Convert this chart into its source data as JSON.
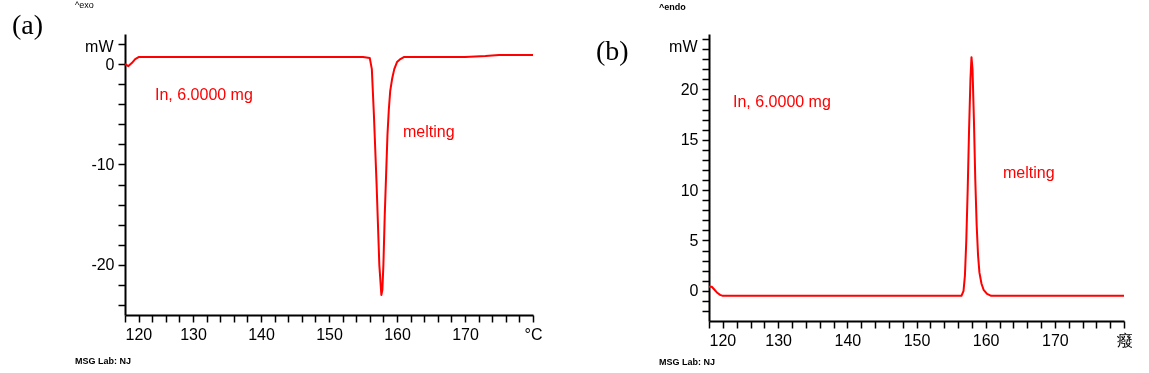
{
  "chart_data": [
    {
      "type": "line",
      "title": "(a)",
      "xlabel": "°C",
      "ylabel": "mW",
      "grid": false,
      "annotations": [
        "^exo",
        "In, 6.0000 mg",
        "melting",
        "MSG Lab: NJ"
      ],
      "x": [
        120,
        120.5,
        121,
        121.5,
        122,
        130,
        140,
        150,
        155,
        156,
        156.3,
        156.6,
        157,
        157.2,
        157.4,
        157.6,
        157.7,
        157.85,
        158,
        158.2,
        158.4,
        158.6,
        158.8,
        159,
        159.3,
        159.6,
        160,
        160.5,
        161,
        165,
        170,
        173,
        175,
        180
      ],
      "series": [
        {
          "color": "#ff0000",
          "values": [
            0,
            -0.2,
            0.1,
            0.5,
            0.7,
            0.7,
            0.7,
            0.7,
            0.7,
            0.6,
            -0.5,
            -5,
            -12,
            -16,
            -20,
            -22,
            -23,
            -22.5,
            -20,
            -15,
            -11,
            -7,
            -4.5,
            -2.7,
            -1.4,
            -0.5,
            0.2,
            0.5,
            0.7,
            0.7,
            0.7,
            0.8,
            0.9,
            0.9
          ]
        }
      ],
      "xlim": [
        120,
        180
      ],
      "xticks": [
        120,
        {
          "value": 122,
          "label": null
        },
        {
          "value": 124,
          "label": null
        },
        {
          "value": 126,
          "label": null
        },
        {
          "value": 128,
          "label": null
        },
        130,
        {
          "value": 132,
          "label": null
        },
        {
          "value": 134,
          "label": null
        },
        {
          "value": 136,
          "label": null
        },
        {
          "value": 138,
          "label": null
        },
        140,
        {
          "value": 142,
          "label": null
        },
        {
          "value": 144,
          "label": null
        },
        {
          "value": 146,
          "label": null
        },
        {
          "value": 148,
          "label": null
        },
        150,
        {
          "value": 152,
          "label": null
        },
        {
          "value": 154,
          "label": null
        },
        {
          "value": 156,
          "label": null
        },
        {
          "value": 158,
          "label": null
        },
        160,
        {
          "value": 162,
          "label": null
        },
        {
          "value": 164,
          "label": null
        },
        {
          "value": 166,
          "label": null
        },
        {
          "value": 168,
          "label": null
        },
        170,
        {
          "value": 172,
          "label": null
        },
        {
          "value": 174,
          "label": null
        },
        {
          "value": 176,
          "label": null
        },
        {
          "value": 178,
          "label": null
        },
        {
          "value": 180,
          "label": null
        }
      ],
      "ylim": [
        -25,
        3
      ],
      "yticks": [
        {
          "value": -24,
          "label": null
        },
        {
          "value": -22,
          "label": null
        },
        -20,
        {
          "value": -18,
          "label": null
        },
        {
          "value": -16,
          "label": null
        },
        {
          "value": -14,
          "label": null
        },
        {
          "value": -12,
          "label": null
        },
        -10,
        {
          "value": -8,
          "label": null
        },
        {
          "value": -6,
          "label": null
        },
        {
          "value": -4,
          "label": null
        },
        {
          "value": -2,
          "label": null
        },
        0,
        {
          "value": 2,
          "label": null
        }
      ]
    },
    {
      "type": "line",
      "title": "(b)",
      "xlabel": "癈",
      "ylabel": "mW",
      "grid": false,
      "annotations": [
        "^endo",
        "In, 6.0000 mg",
        "melting",
        "MSG Lab: NJ"
      ],
      "x": [
        120,
        120.4,
        120.8,
        121.2,
        121.6,
        122,
        130,
        140,
        150,
        155,
        156.5,
        156.8,
        157,
        157.2,
        157.4,
        157.6,
        157.8,
        157.95,
        158.1,
        158.3,
        158.5,
        158.7,
        158.9,
        159.1,
        159.4,
        159.7,
        160.2,
        160.8,
        161.2,
        165,
        170,
        175,
        180
      ],
      "series": [
        {
          "color": "#ff0000",
          "values": [
            0.4,
            0.4,
            0.1,
            -0.2,
            -0.4,
            -0.5,
            -0.5,
            -0.5,
            -0.5,
            -0.5,
            -0.5,
            0,
            1.5,
            5,
            10,
            16,
            21,
            23.2,
            22,
            17,
            11,
            6.5,
            3.5,
            1.8,
            0.7,
            0.1,
            -0.3,
            -0.5,
            -0.5,
            -0.5,
            -0.5,
            -0.5,
            -0.5
          ]
        }
      ],
      "xlim": [
        120,
        180
      ],
      "xticks": [
        120,
        {
          "value": 122,
          "label": null
        },
        {
          "value": 124,
          "label": null
        },
        {
          "value": 126,
          "label": null
        },
        {
          "value": 128,
          "label": null
        },
        130,
        {
          "value": 132,
          "label": null
        },
        {
          "value": 134,
          "label": null
        },
        {
          "value": 136,
          "label": null
        },
        {
          "value": 138,
          "label": null
        },
        140,
        {
          "value": 142,
          "label": null
        },
        {
          "value": 144,
          "label": null
        },
        {
          "value": 146,
          "label": null
        },
        {
          "value": 148,
          "label": null
        },
        150,
        {
          "value": 152,
          "label": null
        },
        {
          "value": 154,
          "label": null
        },
        {
          "value": 156,
          "label": null
        },
        {
          "value": 158,
          "label": null
        },
        160,
        {
          "value": 162,
          "label": null
        },
        {
          "value": 164,
          "label": null
        },
        {
          "value": 166,
          "label": null
        },
        {
          "value": 168,
          "label": null
        },
        170,
        {
          "value": 172,
          "label": null
        },
        {
          "value": 174,
          "label": null
        },
        {
          "value": 176,
          "label": null
        },
        {
          "value": 178,
          "label": null
        },
        {
          "value": 180,
          "label": null
        }
      ],
      "ylim": [
        -3,
        25.5
      ],
      "yticks": [
        {
          "value": -2,
          "label": null
        },
        {
          "value": -1,
          "label": null
        },
        0,
        {
          "value": 1,
          "label": null
        },
        {
          "value": 2,
          "label": null
        },
        {
          "value": 3,
          "label": null
        },
        {
          "value": 4,
          "label": null
        },
        5,
        {
          "value": 6,
          "label": null
        },
        {
          "value": 7,
          "label": null
        },
        {
          "value": 8,
          "label": null
        },
        {
          "value": 9,
          "label": null
        },
        10,
        {
          "value": 11,
          "label": null
        },
        {
          "value": 12,
          "label": null
        },
        {
          "value": 13,
          "label": null
        },
        {
          "value": 14,
          "label": null
        },
        15,
        {
          "value": 16,
          "label": null
        },
        {
          "value": 17,
          "label": null
        },
        {
          "value": 18,
          "label": null
        },
        {
          "value": 19,
          "label": null
        },
        20,
        {
          "value": 21,
          "label": null
        },
        {
          "value": 22,
          "label": null
        },
        {
          "value": 23,
          "label": null
        },
        {
          "value": 24,
          "label": null
        },
        {
          "value": 25,
          "label": null
        }
      ]
    }
  ]
}
